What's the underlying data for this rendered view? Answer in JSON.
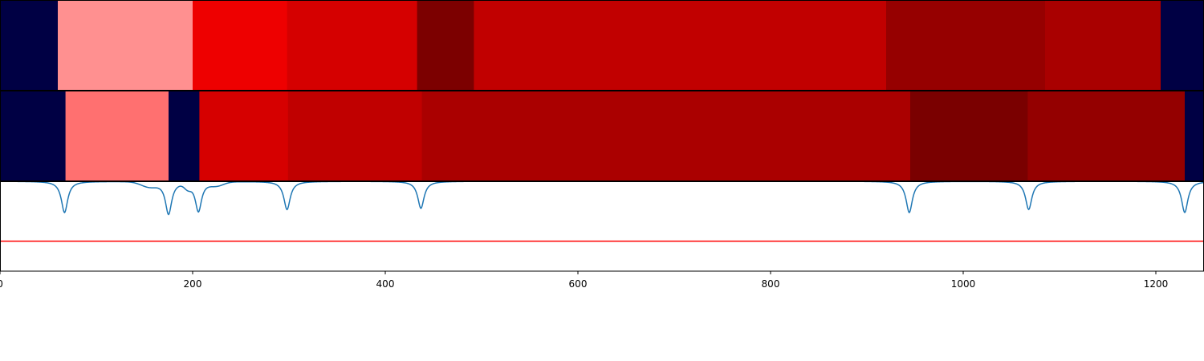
{
  "chart_data": {
    "type": "heatmap",
    "title": "",
    "xlabel": "",
    "ylabel": "",
    "xlim": [
      0,
      1250
    ],
    "x_ticks": [
      0,
      200,
      400,
      600,
      800,
      1000,
      1200
    ],
    "x_tick_labels": [
      "0",
      "200",
      "400",
      "600",
      "800",
      "1000",
      "1200"
    ],
    "grid": false,
    "legend": "none",
    "segment_rows": [
      {
        "segments": [
          {
            "start": 0,
            "end": 60,
            "color": "#000044"
          },
          {
            "start": 60,
            "end": 200,
            "color": "#ff9090"
          },
          {
            "start": 200,
            "end": 298,
            "color": "#ee0000"
          },
          {
            "start": 298,
            "end": 433,
            "color": "#d50000"
          },
          {
            "start": 433,
            "end": 492,
            "color": "#7c0000"
          },
          {
            "start": 492,
            "end": 920,
            "color": "#c10000"
          },
          {
            "start": 920,
            "end": 1085,
            "color": "#960000"
          },
          {
            "start": 1085,
            "end": 1205,
            "color": "#a90000"
          },
          {
            "start": 1205,
            "end": 1250,
            "color": "#000044"
          }
        ]
      },
      {
        "segments": [
          {
            "start": 0,
            "end": 68,
            "color": "#000044"
          },
          {
            "start": 68,
            "end": 175,
            "color": "#ff7070"
          },
          {
            "start": 175,
            "end": 207,
            "color": "#000044"
          },
          {
            "start": 207,
            "end": 299,
            "color": "#d60000"
          },
          {
            "start": 299,
            "end": 438,
            "color": "#c00000"
          },
          {
            "start": 438,
            "end": 945,
            "color": "#aa0000"
          },
          {
            "start": 945,
            "end": 1067,
            "color": "#7a0000"
          },
          {
            "start": 1067,
            "end": 1230,
            "color": "#940000"
          },
          {
            "start": 1230,
            "end": 1250,
            "color": "#000044"
          }
        ]
      }
    ],
    "line_panel": {
      "series_color": "#1f77b4",
      "baseline_value": 1.0,
      "threshold_value": 0.0,
      "threshold_color": "#ff0000",
      "ylim": [
        -0.5,
        1.0
      ],
      "dips": [
        {
          "x": 67,
          "depth": 0.52
        },
        {
          "x": 175,
          "depth": 0.54
        },
        {
          "x": 206,
          "depth": 0.5
        },
        {
          "x": 298,
          "depth": 0.47
        },
        {
          "x": 437,
          "depth": 0.45
        },
        {
          "x": 944,
          "depth": 0.52
        },
        {
          "x": 1068,
          "depth": 0.47
        },
        {
          "x": 1230,
          "depth": 0.52
        }
      ],
      "shoulders": [
        {
          "x": 155,
          "depth": 0.08,
          "width": 12
        },
        {
          "x": 195,
          "depth": 0.08,
          "width": 5
        },
        {
          "x": 225,
          "depth": 0.06,
          "width": 10
        }
      ]
    }
  }
}
